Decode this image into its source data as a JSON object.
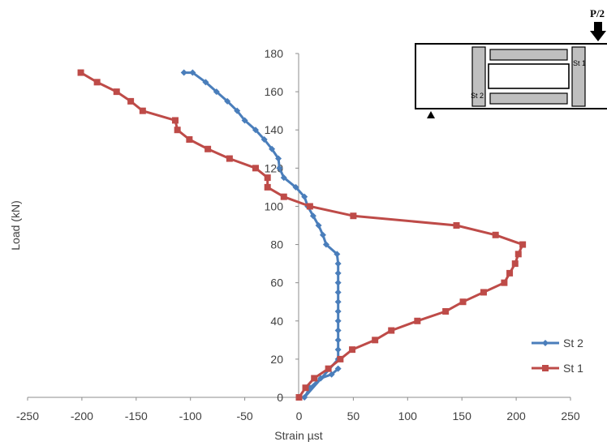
{
  "chart_data": {
    "type": "line",
    "xlabel": "Strain  µst",
    "ylabel": "Load (kN)",
    "xlim": [
      -250,
      250
    ],
    "ylim": [
      0,
      180
    ],
    "x_ticks": [
      -250,
      -200,
      -150,
      -100,
      -50,
      0,
      50,
      100,
      150,
      200,
      250
    ],
    "y_ticks": [
      0,
      20,
      40,
      60,
      80,
      100,
      120,
      140,
      160,
      180
    ],
    "grid": false,
    "legend": "right",
    "series": [
      {
        "name": "St 2",
        "color": "#4a7ebb",
        "marker": "diamond",
        "points": [
          [
            36,
            15
          ],
          [
            30,
            12
          ],
          [
            20,
            10
          ],
          [
            10,
            5
          ],
          [
            5,
            0
          ],
          [
            36,
            20
          ],
          [
            36,
            25
          ],
          [
            36,
            30
          ],
          [
            36,
            35
          ],
          [
            36,
            40
          ],
          [
            36,
            45
          ],
          [
            36,
            50
          ],
          [
            36,
            55
          ],
          [
            36,
            60
          ],
          [
            36,
            65
          ],
          [
            36,
            70
          ],
          [
            35,
            75
          ],
          [
            25,
            80
          ],
          [
            22,
            85
          ],
          [
            18,
            90
          ],
          [
            13,
            95
          ],
          [
            8,
            100
          ],
          [
            5,
            105
          ],
          [
            -3,
            110
          ],
          [
            -14,
            115
          ],
          [
            -18,
            120
          ],
          [
            -19,
            125
          ],
          [
            -25,
            130
          ],
          [
            -32,
            135
          ],
          [
            -40,
            140
          ],
          [
            -50,
            145
          ],
          [
            -57,
            150
          ],
          [
            -66,
            155
          ],
          [
            -76,
            160
          ],
          [
            -86,
            165
          ],
          [
            -98,
            170
          ],
          [
            -106,
            170
          ]
        ]
      },
      {
        "name": "St 1",
        "color": "#be4b48",
        "marker": "square",
        "points": [
          [
            0,
            0
          ],
          [
            6,
            5
          ],
          [
            14,
            10
          ],
          [
            27,
            15
          ],
          [
            38,
            20
          ],
          [
            49,
            25
          ],
          [
            70,
            30
          ],
          [
            85,
            35
          ],
          [
            109,
            40
          ],
          [
            135,
            45
          ],
          [
            151,
            50
          ],
          [
            170,
            55
          ],
          [
            189,
            60
          ],
          [
            194,
            65
          ],
          [
            199,
            70
          ],
          [
            202,
            75
          ],
          [
            206,
            80
          ],
          [
            181,
            85
          ],
          [
            145,
            90
          ],
          [
            50,
            95
          ],
          [
            10,
            100
          ],
          [
            -14,
            105
          ],
          [
            -29,
            110
          ],
          [
            -29,
            115
          ],
          [
            -40,
            120
          ],
          [
            -64,
            125
          ],
          [
            -84,
            130
          ],
          [
            -101,
            135
          ],
          [
            -112,
            140
          ],
          [
            -114,
            145
          ],
          [
            -144,
            150
          ],
          [
            -155,
            155
          ],
          [
            -168,
            160
          ],
          [
            -186,
            165
          ],
          [
            -201,
            170
          ]
        ]
      }
    ]
  },
  "diagram": {
    "load_label": "P/2",
    "gauge_right": "St 1",
    "gauge_left": "St 2"
  }
}
